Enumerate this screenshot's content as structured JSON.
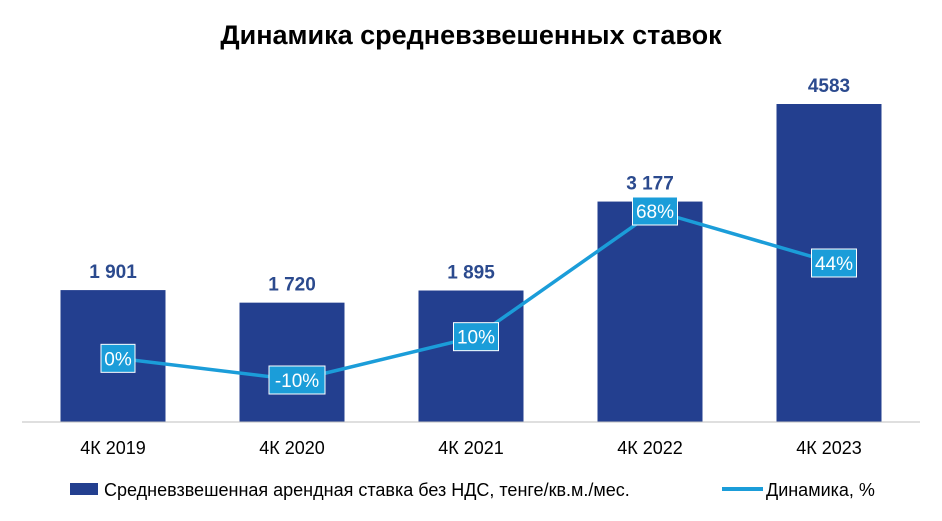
{
  "chart_data": {
    "type": "bar",
    "title": "Динамика средневзвешенных ставок",
    "categories": [
      "4К 2019",
      "4К 2020",
      "4К 2021",
      "4К 2022",
      "4К 2023"
    ],
    "series": [
      {
        "name": "Средневзвешенная арендная ставка без НДС, тенге/кв.м./мес.",
        "type": "bar",
        "values": [
          1901,
          1720,
          1895,
          3177,
          4583
        ],
        "labels": [
          "1 901",
          "1 720",
          "1 895",
          "3 177",
          "4583"
        ]
      },
      {
        "name": "Динамика, %",
        "type": "line",
        "values": [
          0,
          -10,
          10,
          68,
          44
        ],
        "labels": [
          "0%",
          "-10%",
          "10%",
          "68%",
          "44%"
        ]
      }
    ],
    "ylim_bars": [
      0,
      4583
    ],
    "ylim_line": [
      -15,
      90
    ],
    "grid": false,
    "legend": "bottom",
    "colors": {
      "bar": "#233f8f",
      "bar_label": "#2b4a8e",
      "line": "#1b9dd9",
      "line_label_bg": "#1b9dd9",
      "line_label_text": "#ffffff",
      "axis": "#bfbfbf"
    }
  }
}
